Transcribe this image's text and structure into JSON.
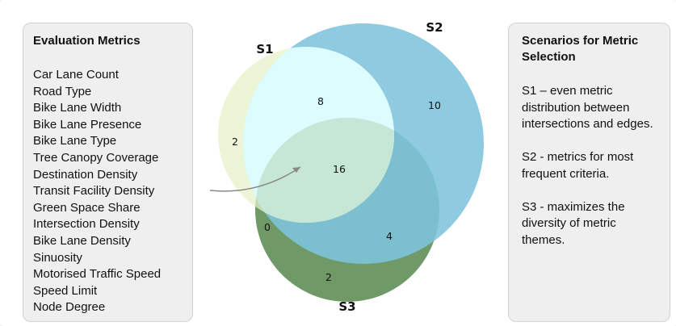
{
  "metrics_panel": {
    "title": "Evaluation Metrics",
    "items": [
      "Car Lane Count",
      "Road Type",
      "Bike Lane Width",
      "Bike Lane Presence",
      "Bike Lane Type",
      "Tree Canopy Coverage",
      "Destination Density",
      "Transit Facility Density",
      "Green Space Share",
      "Intersection Density",
      "Bike Lane Density",
      "Sinuosity",
      "Motorised Traffic Speed",
      "Speed Limit",
      "Node Degree"
    ]
  },
  "scenarios_panel": {
    "title": "Scenarios for Metric Selection",
    "items": [
      "S1 – even metric distribution between intersections and edges.",
      "S2 - metrics for most frequent criteria.",
      "S3 - maximizes the diversity of metric themes."
    ]
  },
  "venn": {
    "set_labels": {
      "s1": "S1",
      "s2": "S2",
      "s3": "S3"
    },
    "region_counts": {
      "s1_only": "2",
      "s2_only": "10",
      "s3_only": "2",
      "s1_s2_only": "8",
      "s2_s3_only": "4",
      "s1_s3_only": "0",
      "all_three": "16"
    },
    "colors": {
      "s1": "#e4f2c8",
      "s2": "#7ec4dc",
      "s3": "#6f9a68",
      "s1_s2": "#dcfcff",
      "all_three": "#c6e6d6",
      "arrow": "#888888"
    }
  }
}
